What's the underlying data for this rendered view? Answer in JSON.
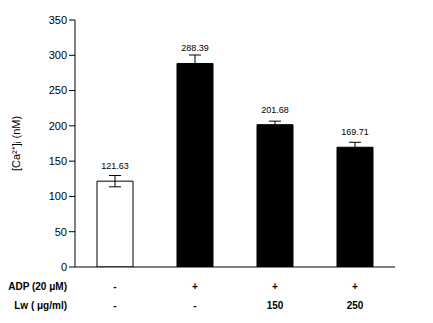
{
  "chart_data": {
    "type": "bar",
    "y_label": "[Ca²⁺]ᵢ (nM)",
    "categories": [
      null,
      null,
      null,
      null
    ],
    "values": [
      121.63,
      288.39,
      201.68,
      169.71
    ],
    "errors": [
      8,
      12,
      5,
      7
    ],
    "colors": [
      "#ffffff",
      "#000000",
      "#000000",
      "#000000"
    ],
    "ylim": [
      0,
      350
    ],
    "yticks": [
      0,
      50,
      100,
      150,
      200,
      250,
      300,
      350
    ],
    "data_labels": true,
    "tick_labels": "y",
    "conditions": [
      {
        "label": "ADP (20 μM)",
        "values": [
          "-",
          "+",
          "+",
          "+"
        ]
      },
      {
        "label": "Lw ( μg/ml)",
        "values": [
          "-",
          "-",
          "150",
          "250"
        ]
      }
    ]
  }
}
